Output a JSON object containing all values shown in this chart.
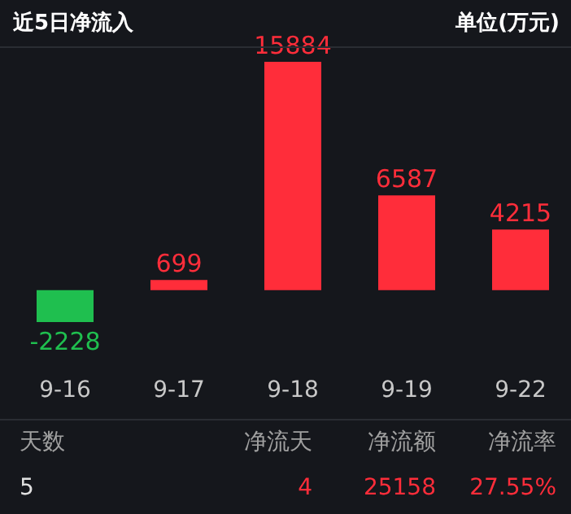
{
  "chart_data": {
    "type": "bar",
    "title": "近5日净流入",
    "subtitle": "单位(万元)",
    "categories": [
      "9-16",
      "9-17",
      "9-18",
      "9-19",
      "9-22"
    ],
    "values": [
      -2228,
      699,
      15884,
      6587,
      4215
    ],
    "colors": [
      "#1fbf4f",
      "#ff2d3a",
      "#ff2d3a",
      "#ff2d3a",
      "#ff2d3a"
    ],
    "data_labels": true,
    "annotations": [
      "天数",
      "净流天",
      "净流额",
      "净流率",
      "5",
      "4",
      "25158",
      "27.55%"
    ]
  }
}
